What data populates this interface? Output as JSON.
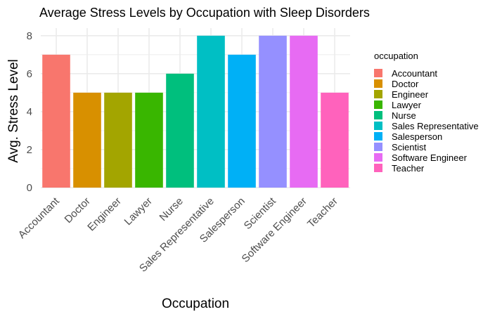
{
  "chart_data": {
    "type": "bar",
    "title": "Average Stress Levels by Occupation with Sleep Disorders",
    "xlabel": "Occupation",
    "ylabel": "Avg. Stress Level",
    "categories": [
      "Accountant",
      "Doctor",
      "Engineer",
      "Lawyer",
      "Nurse",
      "Sales Representative",
      "Salesperson",
      "Scientist",
      "Software Engineer",
      "Teacher"
    ],
    "values": [
      7,
      5,
      5,
      5,
      6,
      8,
      7,
      8,
      8,
      5
    ],
    "colors": [
      "#F8766D",
      "#D89000",
      "#A3A500",
      "#39B600",
      "#00BF7D",
      "#00BFC4",
      "#00B0F6",
      "#9590FF",
      "#E76BF3",
      "#FF62BC"
    ],
    "ylim": [
      0,
      8.4
    ],
    "yticks": [
      0,
      2,
      4,
      6,
      8
    ],
    "grid": true,
    "legend": {
      "title": "occupation",
      "position": "right",
      "entries": [
        "Accountant",
        "Doctor",
        "Engineer",
        "Lawyer",
        "Nurse",
        "Sales Representative",
        "Salesperson",
        "Scientist",
        "Software Engineer",
        "Teacher"
      ]
    }
  }
}
